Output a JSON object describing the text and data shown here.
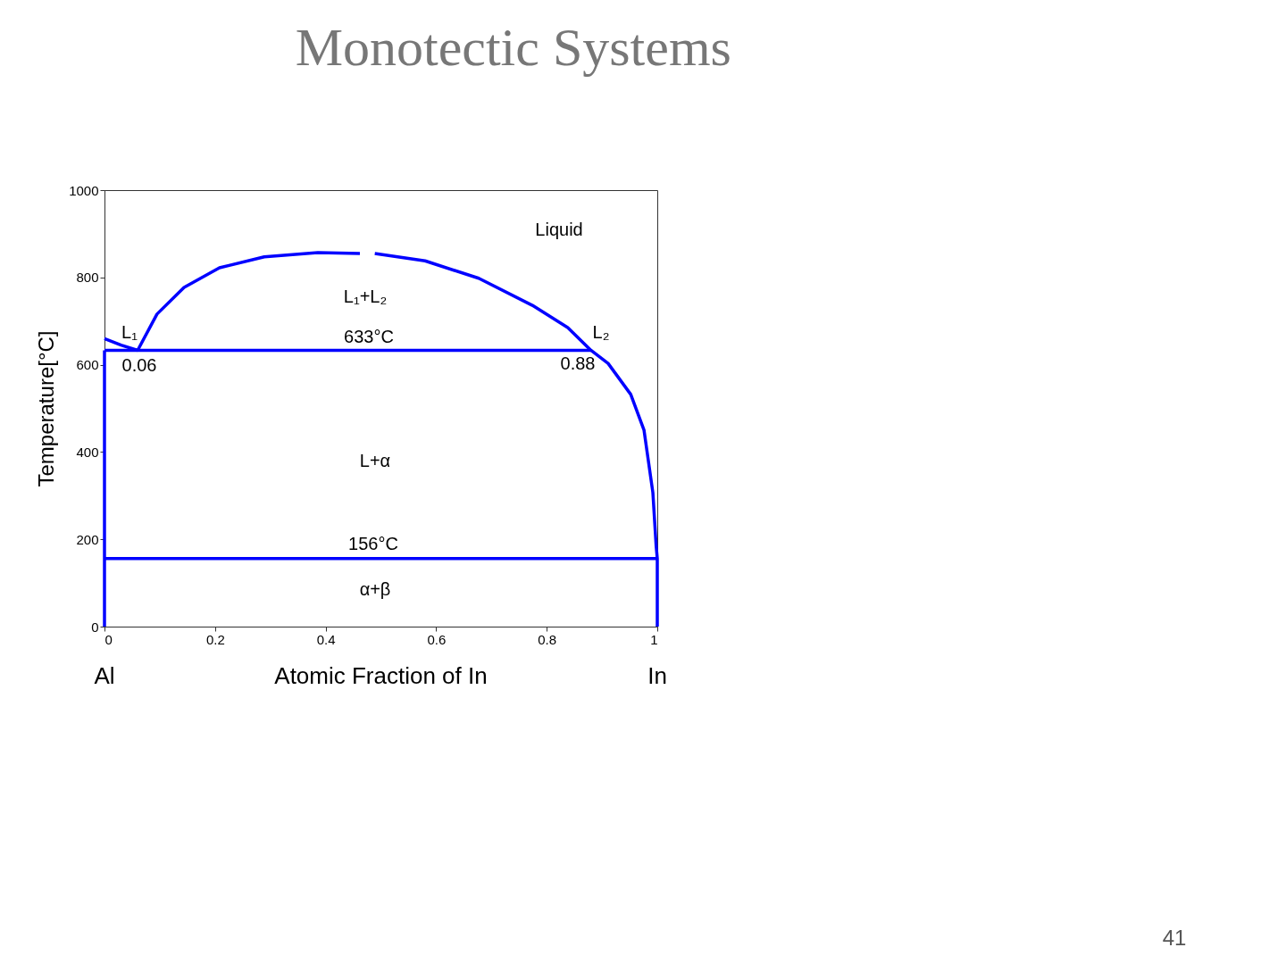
{
  "chart_data": {
    "type": "line",
    "title": "Monotectic Systems",
    "xlabel": "Atomic Fraction of In",
    "ylabel": "Temperature[°C]",
    "xlim": [
      0,
      1
    ],
    "ylim": [
      0,
      1000
    ],
    "xticks": [
      0,
      0.2,
      0.4,
      0.6,
      0.8,
      1
    ],
    "yticks": [
      0,
      200,
      400,
      600,
      800,
      {
        "value": 1000,
        "label": "1000"
      }
    ],
    "line_style": "solid",
    "series": [
      {
        "color": "#0000ff",
        "x": [
          0.06,
          0.095,
          0.144,
          0.208,
          0.289,
          0.386,
          0.462
        ],
        "values": [
          633,
          716,
          777,
          822,
          847,
          857,
          855
        ]
      },
      {
        "color": "#0000ff",
        "x": [
          0.489,
          0.58,
          0.677,
          0.774,
          0.838,
          0.88,
          0.911,
          0.952,
          0.976,
          0.992,
          0.998,
          1,
          1
        ],
        "values": [
          855,
          838,
          798,
          736,
          685,
          633,
          603,
          532,
          450,
          307,
          184,
          156,
          0
        ]
      },
      {
        "color": "#0000ff",
        "x": [
          0,
          0.03,
          0.06
        ],
        "values": [
          660,
          645,
          633
        ]
      },
      {
        "color": "#0000ff",
        "x": [
          0,
          0.88
        ],
        "values": [
          633,
          633
        ]
      },
      {
        "color": "#0000ff",
        "x": [
          0,
          1
        ],
        "values": [
          156,
          156
        ]
      },
      {
        "color": "#0000ff",
        "x": [
          0,
          0
        ],
        "values": [
          633,
          0
        ]
      }
    ],
    "annotations": [
      "Liquid",
      "L₁+L₂",
      "633°C",
      "L₁",
      "L₂",
      "0.06",
      "0.88",
      "L+α",
      "156°C",
      "α+β",
      "Al",
      "In",
      "41"
    ]
  }
}
